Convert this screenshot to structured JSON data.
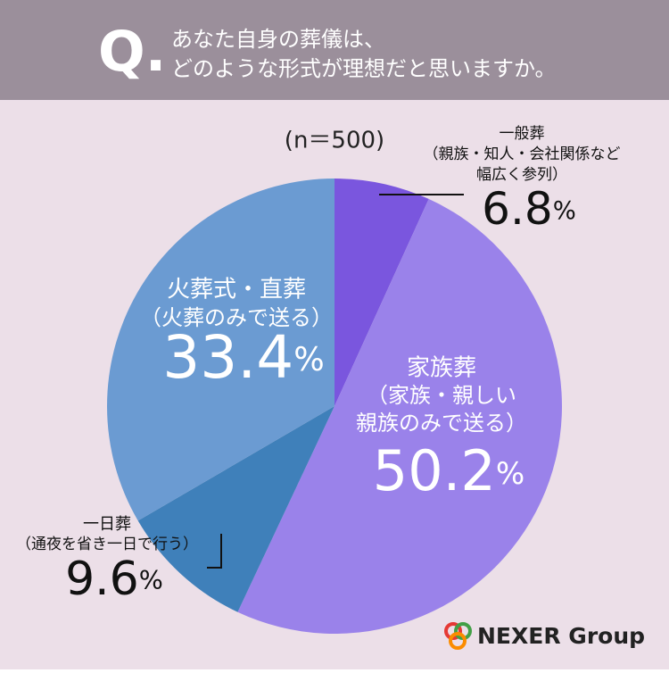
{
  "header": {
    "mark": "Q.",
    "lines": [
      "あなた自身の葬儀は、",
      "どのような形式が理想だと思いますか。"
    ]
  },
  "chart_data": {
    "type": "pie",
    "subtitle": "(n＝500)",
    "categories": [
      "一般葬",
      "家族葬",
      "一日葬",
      "火葬式・直葬"
    ],
    "notes": [
      [
        "（親族・知人・会社関係など",
        "幅広く参列）"
      ],
      [
        "（家族・親しい",
        "親族のみで送る）"
      ],
      [
        "（通夜を省き一日で行う）"
      ],
      [
        "（火葬のみで送る）"
      ]
    ],
    "values": [
      6.8,
      50.2,
      9.6,
      33.4
    ],
    "unit": "%",
    "colors": [
      "#7a56de",
      "#9a82ea",
      "#3f80ba",
      "#6b9bd2"
    ]
  },
  "logo": "NEXER Group"
}
